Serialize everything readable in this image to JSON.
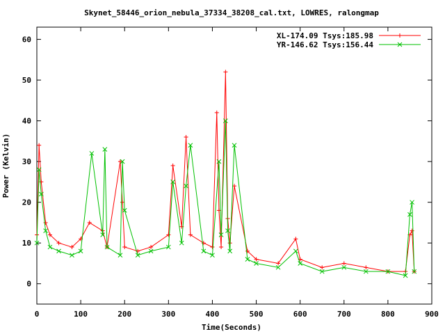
{
  "chart_data": {
    "type": "line",
    "title": "Skynet_58446_orion_nebula_37334_38208_cal.txt, LOWRES, ralongmap",
    "xlabel": "Time(Seconds)",
    "ylabel": "Power (Kelvin)",
    "xlim": [
      0,
      900
    ],
    "ylim": [
      -5,
      63
    ],
    "xticks": [
      "0",
      "100",
      "200",
      "300",
      "400",
      "500",
      "600",
      "700",
      "800",
      "900"
    ],
    "yticks": [
      "0",
      "10",
      "20",
      "30",
      "40",
      "50",
      "60"
    ],
    "legend_position": "top-right",
    "series": [
      {
        "name": "XL-174.09 Tsys:185.98",
        "color": "#ff0000",
        "marker": "+",
        "x": [
          0,
          5,
          10,
          20,
          30,
          50,
          80,
          100,
          120,
          150,
          160,
          190,
          195,
          200,
          230,
          260,
          300,
          310,
          330,
          340,
          350,
          380,
          400,
          410,
          415,
          420,
          430,
          435,
          440,
          450,
          480,
          500,
          550,
          590,
          600,
          650,
          700,
          750,
          800,
          840,
          850,
          855,
          860
        ],
        "y": [
          12,
          34,
          25,
          15,
          12,
          10,
          9,
          11,
          15,
          13,
          9,
          30,
          20,
          9,
          8,
          9,
          12,
          29,
          14,
          36,
          12,
          10,
          9,
          42,
          18,
          9,
          52,
          16,
          10,
          24,
          8,
          6,
          5,
          11,
          6,
          4,
          5,
          4,
          3,
          3,
          12,
          13,
          3
        ]
      },
      {
        "name": "YR-146.62 Tsys:156.44",
        "color": "#00c000",
        "marker": "x",
        "x": [
          0,
          5,
          10,
          20,
          30,
          50,
          80,
          100,
          125,
          150,
          155,
          160,
          190,
          195,
          200,
          230,
          260,
          300,
          310,
          330,
          340,
          350,
          380,
          400,
          415,
          420,
          430,
          435,
          440,
          450,
          480,
          500,
          550,
          590,
          600,
          650,
          700,
          750,
          800,
          840,
          850,
          855,
          860
        ],
        "y": [
          10,
          28,
          22,
          13,
          9,
          8,
          7,
          8,
          32,
          12,
          33,
          9,
          7,
          30,
          18,
          7,
          8,
          9,
          25,
          10,
          24,
          34,
          8,
          7,
          30,
          12,
          40,
          13,
          8,
          34,
          6,
          5,
          4,
          8,
          5,
          3,
          4,
          3,
          3,
          2,
          17,
          20,
          3
        ]
      }
    ]
  }
}
